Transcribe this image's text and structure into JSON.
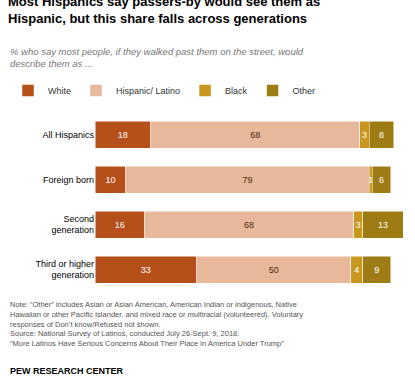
{
  "chart_data": {
    "type": "bar",
    "orientation": "horizontal",
    "stacked": true,
    "title": "Most Hispanics say passers-by would see them as\nHispanic, but this share falls across generations",
    "subtitle": "% who say most people, if they walked past them on the street, would\ndescribe them as ...",
    "categories": [
      "All Hispanics",
      "Foreign born",
      "Second\ngeneration",
      "Third or higher\ngeneration"
    ],
    "series": [
      {
        "name": "White",
        "color": "#b5501a",
        "values": [
          18,
          10,
          16,
          33
        ]
      },
      {
        "name": "Hispanic/ Latino",
        "color": "#e8b89a",
        "values": [
          68,
          79,
          68,
          50
        ]
      },
      {
        "name": "Black",
        "color": "#c9971e",
        "values": [
          3,
          1,
          3,
          4
        ]
      },
      {
        "name": "Other",
        "color": "#9e7c14",
        "values": [
          8,
          6,
          13,
          9
        ]
      }
    ],
    "xlim": [
      0,
      100
    ],
    "data_labels": true,
    "legend": "top",
    "grid": false,
    "tick_labels": "y",
    "note": "Note: “Other” includes Asian or Asian American, American Indian or indigenous, Native\nHawaiian or other Pacific Islander, and mixed race or multiracial (volunteered). Voluntary\nresponses of Don’t know/Refused not shown.\nSource: National Survey of Latinos, conducted July 26-Sept. 9, 2018.\n“More Latinos Have Serious Concerns About Their Place in America Under Trump”",
    "footer": "PEW RESEARCH CENTER"
  }
}
